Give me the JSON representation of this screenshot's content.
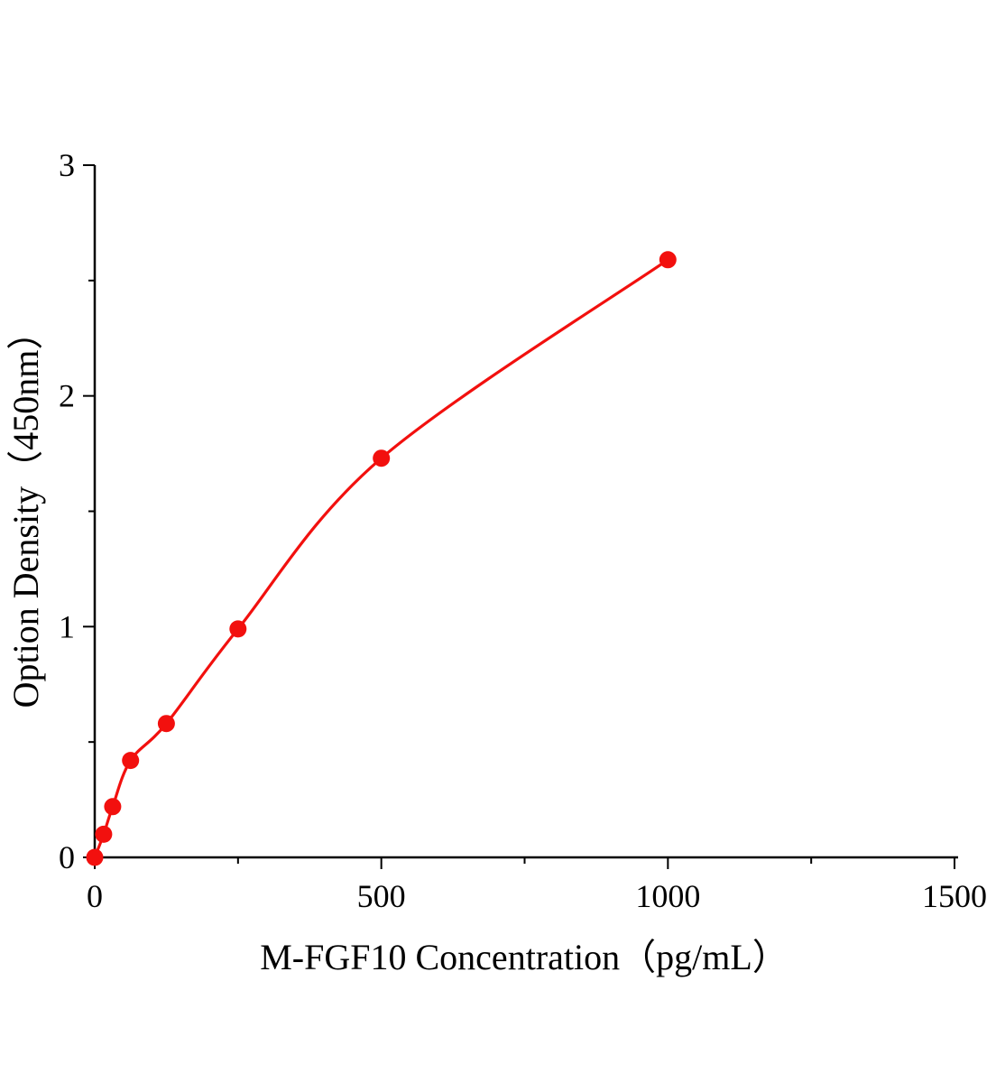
{
  "chart_data": {
    "type": "scatter",
    "title": "",
    "xlabel": "M-FGF10 Concentration（pg/mL）",
    "ylabel": "Option Density（450nm）",
    "x": [
      0,
      15.6,
      31.25,
      62.5,
      125,
      250,
      500,
      1000
    ],
    "y": [
      0,
      0.1,
      0.22,
      0.42,
      0.58,
      0.99,
      1.73,
      2.59
    ],
    "xlim": [
      0,
      1500
    ],
    "ylim": [
      0,
      3
    ],
    "xticks": [
      0,
      500,
      1000,
      1500
    ],
    "yticks": [
      0,
      1,
      2,
      3
    ],
    "minor_xticks": [
      250,
      750,
      1250
    ],
    "minor_yticks": [
      0.5,
      1.5,
      2.5
    ],
    "grid": false,
    "legend": null,
    "curve_color": "#f2100e",
    "marker_color": "#f2100e",
    "axis_color": "#000000",
    "fit": "smooth curve through points"
  }
}
